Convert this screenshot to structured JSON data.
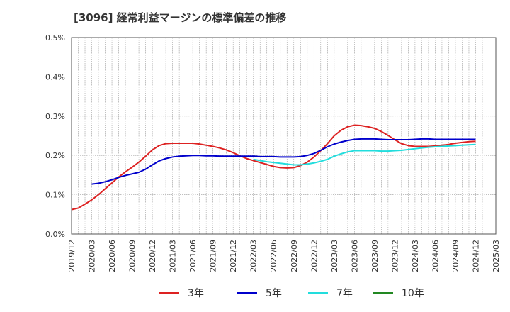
{
  "chart_data": {
    "type": "line",
    "title": "[3096]  経常利益マージンの標準偏差の推移",
    "xlabel": "",
    "ylabel": "",
    "x": [
      "2019/12",
      "2020/03",
      "2020/06",
      "2020/09",
      "2020/12",
      "2021/03",
      "2021/06",
      "2021/09",
      "2021/12",
      "2022/03",
      "2022/06",
      "2022/09",
      "2022/12",
      "2023/03",
      "2023/06",
      "2023/09",
      "2023/12",
      "2024/03",
      "2024/06",
      "2024/09",
      "2024/12",
      "2025/03"
    ],
    "x_tick_labels": [
      "2019/12",
      "2020/03",
      "2020/06",
      "2020/09",
      "2020/12",
      "2021/03",
      "2021/06",
      "2021/09",
      "2021/12",
      "2022/03",
      "2022/06",
      "2022/09",
      "2022/12",
      "2023/03",
      "2023/06",
      "2023/09",
      "2023/12",
      "2024/03",
      "2024/06",
      "2024/09",
      "2024/12",
      "2025/03"
    ],
    "y_tick_labels": [
      "0.0%",
      "0.1%",
      "0.2%",
      "0.3%",
      "0.4%",
      "0.5%"
    ],
    "y_ticks": [
      0,
      0.1,
      0.2,
      0.3,
      0.4,
      0.5
    ],
    "ylim": [
      0,
      0.5
    ],
    "grid": true,
    "legend_placement": "bottom",
    "series": [
      {
        "name": "3年",
        "color": "#dd2222",
        "points": [
          [
            "2019/12",
            0.062
          ],
          [
            "2020/01",
            0.066
          ],
          [
            "2020/02",
            0.076
          ],
          [
            "2020/03",
            0.087
          ],
          [
            "2020/04",
            0.1
          ],
          [
            "2020/05",
            0.115
          ],
          [
            "2020/06",
            0.13
          ],
          [
            "2020/07",
            0.145
          ],
          [
            "2020/08",
            0.158
          ],
          [
            "2020/09",
            0.17
          ],
          [
            "2020/10",
            0.183
          ],
          [
            "2020/11",
            0.198
          ],
          [
            "2020/12",
            0.214
          ],
          [
            "2021/01",
            0.225
          ],
          [
            "2021/02",
            0.23
          ],
          [
            "2021/03",
            0.231
          ],
          [
            "2021/04",
            0.231
          ],
          [
            "2021/05",
            0.231
          ],
          [
            "2021/06",
            0.231
          ],
          [
            "2021/07",
            0.229
          ],
          [
            "2021/08",
            0.226
          ],
          [
            "2021/09",
            0.223
          ],
          [
            "2021/10",
            0.219
          ],
          [
            "2021/11",
            0.214
          ],
          [
            "2021/12",
            0.207
          ],
          [
            "2022/01",
            0.199
          ],
          [
            "2022/02",
            0.192
          ],
          [
            "2022/03",
            0.187
          ],
          [
            "2022/04",
            0.182
          ],
          [
            "2022/05",
            0.177
          ],
          [
            "2022/06",
            0.172
          ],
          [
            "2022/07",
            0.169
          ],
          [
            "2022/08",
            0.168
          ],
          [
            "2022/09",
            0.169
          ],
          [
            "2022/10",
            0.174
          ],
          [
            "2022/11",
            0.183
          ],
          [
            "2022/12",
            0.196
          ],
          [
            "2023/01",
            0.212
          ],
          [
            "2023/02",
            0.23
          ],
          [
            "2023/03",
            0.25
          ],
          [
            "2023/04",
            0.264
          ],
          [
            "2023/05",
            0.273
          ],
          [
            "2023/06",
            0.277
          ],
          [
            "2023/07",
            0.276
          ],
          [
            "2023/08",
            0.273
          ],
          [
            "2023/09",
            0.269
          ],
          [
            "2023/10",
            0.261
          ],
          [
            "2023/11",
            0.251
          ],
          [
            "2023/12",
            0.24
          ],
          [
            "2024/01",
            0.23
          ],
          [
            "2024/02",
            0.225
          ],
          [
            "2024/03",
            0.223
          ],
          [
            "2024/04",
            0.223
          ],
          [
            "2024/05",
            0.223
          ],
          [
            "2024/06",
            0.224
          ],
          [
            "2024/07",
            0.226
          ],
          [
            "2024/08",
            0.228
          ],
          [
            "2024/09",
            0.231
          ],
          [
            "2024/10",
            0.233
          ],
          [
            "2024/11",
            0.235
          ],
          [
            "2024/12",
            0.236
          ]
        ]
      },
      {
        "name": "5年",
        "color": "#0000cc",
        "points": [
          [
            "2020/03",
            0.127
          ],
          [
            "2020/04",
            0.129
          ],
          [
            "2020/05",
            0.133
          ],
          [
            "2020/06",
            0.138
          ],
          [
            "2020/07",
            0.144
          ],
          [
            "2020/08",
            0.149
          ],
          [
            "2020/09",
            0.153
          ],
          [
            "2020/10",
            0.157
          ],
          [
            "2020/11",
            0.165
          ],
          [
            "2020/12",
            0.176
          ],
          [
            "2021/01",
            0.186
          ],
          [
            "2021/02",
            0.192
          ],
          [
            "2021/03",
            0.196
          ],
          [
            "2021/04",
            0.198
          ],
          [
            "2021/05",
            0.199
          ],
          [
            "2021/06",
            0.2
          ],
          [
            "2021/07",
            0.2
          ],
          [
            "2021/08",
            0.199
          ],
          [
            "2021/09",
            0.199
          ],
          [
            "2021/10",
            0.198
          ],
          [
            "2021/11",
            0.198
          ],
          [
            "2021/12",
            0.198
          ],
          [
            "2022/01",
            0.198
          ],
          [
            "2022/02",
            0.198
          ],
          [
            "2022/03",
            0.198
          ],
          [
            "2022/04",
            0.197
          ],
          [
            "2022/05",
            0.197
          ],
          [
            "2022/06",
            0.197
          ],
          [
            "2022/07",
            0.196
          ],
          [
            "2022/08",
            0.196
          ],
          [
            "2022/09",
            0.196
          ],
          [
            "2022/10",
            0.197
          ],
          [
            "2022/11",
            0.2
          ],
          [
            "2022/12",
            0.205
          ],
          [
            "2023/01",
            0.213
          ],
          [
            "2023/02",
            0.222
          ],
          [
            "2023/03",
            0.229
          ],
          [
            "2023/04",
            0.234
          ],
          [
            "2023/05",
            0.238
          ],
          [
            "2023/06",
            0.241
          ],
          [
            "2023/07",
            0.242
          ],
          [
            "2023/08",
            0.242
          ],
          [
            "2023/09",
            0.242
          ],
          [
            "2023/10",
            0.241
          ],
          [
            "2023/11",
            0.24
          ],
          [
            "2023/12",
            0.24
          ],
          [
            "2024/01",
            0.24
          ],
          [
            "2024/02",
            0.24
          ],
          [
            "2024/03",
            0.241
          ],
          [
            "2024/04",
            0.242
          ],
          [
            "2024/05",
            0.242
          ],
          [
            "2024/06",
            0.241
          ],
          [
            "2024/07",
            0.241
          ],
          [
            "2024/08",
            0.241
          ],
          [
            "2024/09",
            0.241
          ],
          [
            "2024/10",
            0.241
          ],
          [
            "2024/11",
            0.241
          ],
          [
            "2024/12",
            0.241
          ]
        ]
      },
      {
        "name": "7年",
        "color": "#22dddd",
        "points": [
          [
            "2022/03",
            0.19
          ],
          [
            "2022/04",
            0.187
          ],
          [
            "2022/05",
            0.184
          ],
          [
            "2022/06",
            0.182
          ],
          [
            "2022/07",
            0.18
          ],
          [
            "2022/08",
            0.178
          ],
          [
            "2022/09",
            0.176
          ],
          [
            "2022/10",
            0.176
          ],
          [
            "2022/11",
            0.178
          ],
          [
            "2022/12",
            0.181
          ],
          [
            "2023/01",
            0.185
          ],
          [
            "2023/02",
            0.19
          ],
          [
            "2023/03",
            0.198
          ],
          [
            "2023/04",
            0.204
          ],
          [
            "2023/05",
            0.209
          ],
          [
            "2023/06",
            0.212
          ],
          [
            "2023/07",
            0.212
          ],
          [
            "2023/08",
            0.212
          ],
          [
            "2023/09",
            0.212
          ],
          [
            "2023/10",
            0.211
          ],
          [
            "2023/11",
            0.211
          ],
          [
            "2023/12",
            0.212
          ],
          [
            "2024/01",
            0.213
          ],
          [
            "2024/02",
            0.215
          ],
          [
            "2024/03",
            0.217
          ],
          [
            "2024/04",
            0.219
          ],
          [
            "2024/05",
            0.221
          ],
          [
            "2024/06",
            0.222
          ],
          [
            "2024/07",
            0.223
          ],
          [
            "2024/08",
            0.224
          ],
          [
            "2024/09",
            0.225
          ],
          [
            "2024/10",
            0.226
          ],
          [
            "2024/11",
            0.227
          ],
          [
            "2024/12",
            0.228
          ]
        ]
      },
      {
        "name": "10年",
        "color": "#228822",
        "points": []
      }
    ]
  }
}
